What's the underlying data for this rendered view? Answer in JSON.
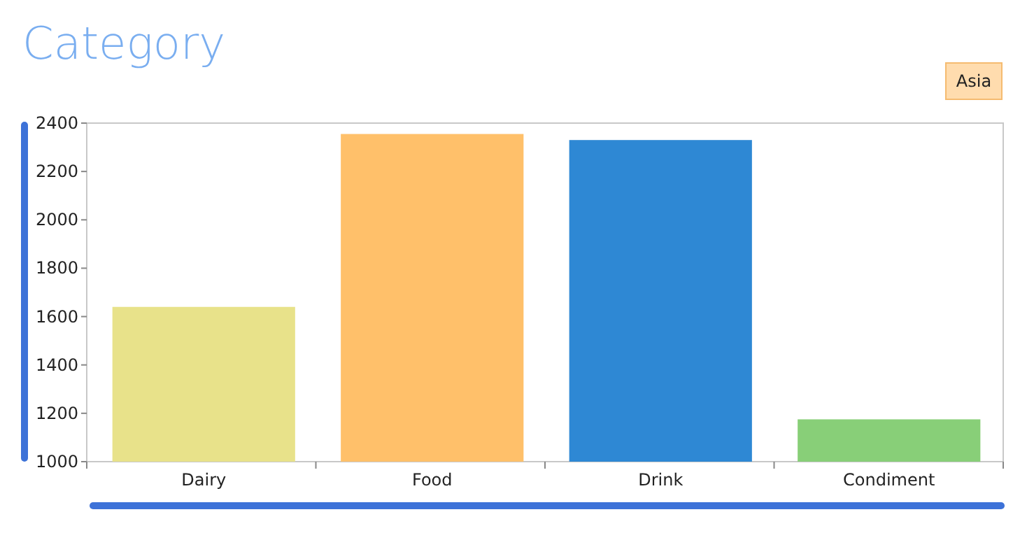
{
  "chart_data": {
    "type": "bar",
    "title": "Category",
    "categories": [
      "Dairy",
      "Food",
      "Drink",
      "Condiment"
    ],
    "values": [
      1640,
      2355,
      2330,
      1175
    ],
    "colors": [
      "#e8e28a",
      "#ffc06a",
      "#2e88d4",
      "#88cf78"
    ],
    "ylim": [
      1000,
      2400
    ],
    "yticks": [
      1000,
      1200,
      1400,
      1600,
      1800,
      2000,
      2200,
      2400
    ],
    "annotations": [
      "Asia"
    ],
    "grid": false
  }
}
